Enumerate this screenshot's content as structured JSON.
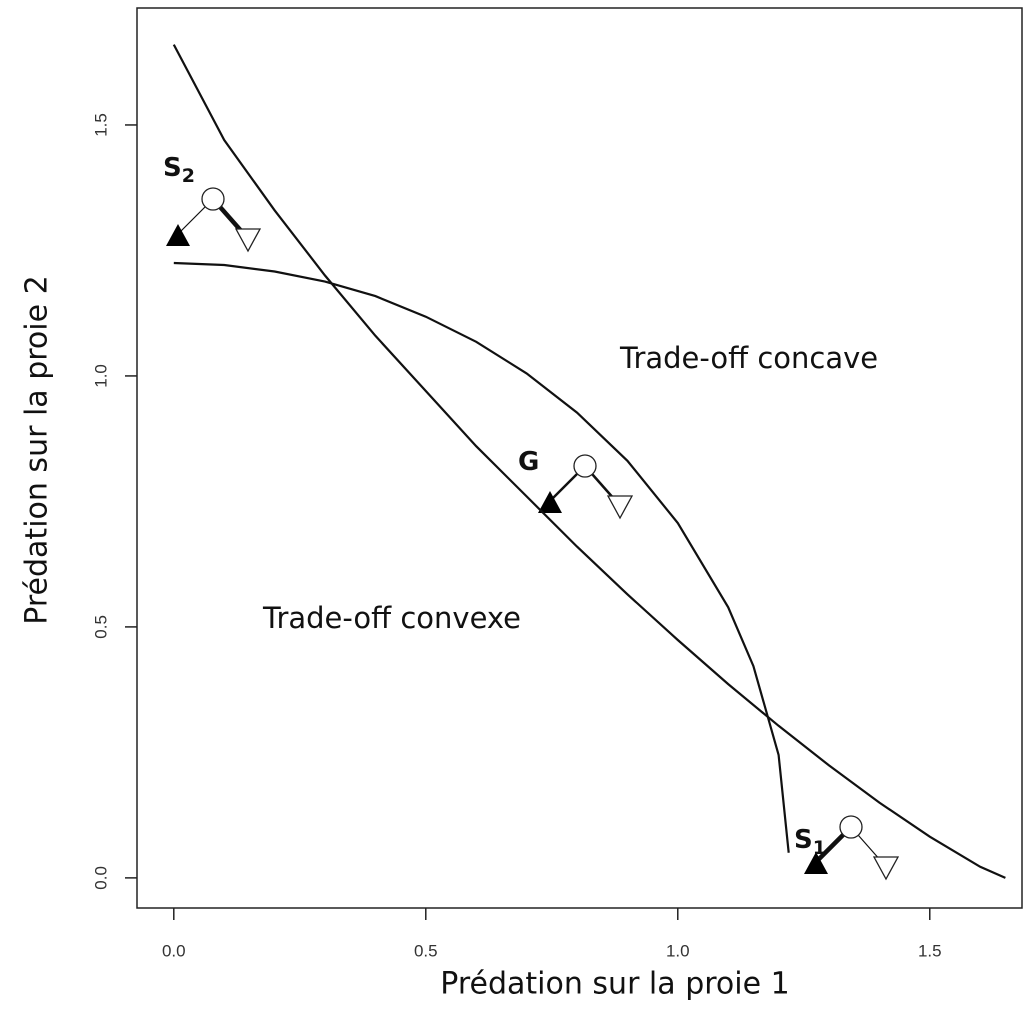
{
  "chart_data": {
    "type": "line",
    "x_label": "Prédation sur la proie 1",
    "y_label": "Prédation sur la proie 2",
    "xlim": [
      -0.073,
      1.683
    ],
    "ylim": [
      -0.06,
      1.733
    ],
    "xticks": [
      {
        "value": 0,
        "label": "0.0"
      },
      0.5,
      {
        "value": 1,
        "label": "1.0"
      },
      1.5
    ],
    "yticks": [
      {
        "value": 0,
        "label": "0.0"
      },
      0.5,
      {
        "value": 1,
        "label": "1.0"
      },
      1.5
    ],
    "lines": [
      {
        "color": "#111",
        "x": [
          0,
          0.1,
          0.2,
          0.3,
          0.4,
          0.5,
          0.6,
          0.7,
          0.8,
          0.9,
          1.0,
          1.1,
          1.2,
          1.3,
          1.4,
          1.5,
          1.6,
          1.65
        ],
        "y": [
          1.66,
          1.47,
          1.33,
          1.2,
          1.08,
          0.97,
          0.86,
          0.76,
          0.66,
          0.565,
          0.474,
          0.386,
          0.303,
          0.224,
          0.15,
          0.082,
          0.022,
          0
        ]
      },
      {
        "color": "#111",
        "x": [
          0,
          0.1,
          0.2,
          0.3,
          0.4,
          0.5,
          0.6,
          0.7,
          0.8,
          0.9,
          1.0,
          1.1,
          1.15,
          1.2,
          1.22
        ],
        "y": [
          1.225,
          1.221,
          1.208,
          1.188,
          1.159,
          1.118,
          1.068,
          1.005,
          0.927,
          0.831,
          0.707,
          0.539,
          0.422,
          0.245,
          0.05
        ]
      }
    ],
    "annotations": [
      {
        "text": "Trade-off concave"
      },
      {
        "text": "Trade-off convexe"
      },
      {
        "text": "S",
        "sub": "2"
      },
      {
        "text": "G"
      },
      {
        "text": "S",
        "sub": "1"
      }
    ]
  }
}
